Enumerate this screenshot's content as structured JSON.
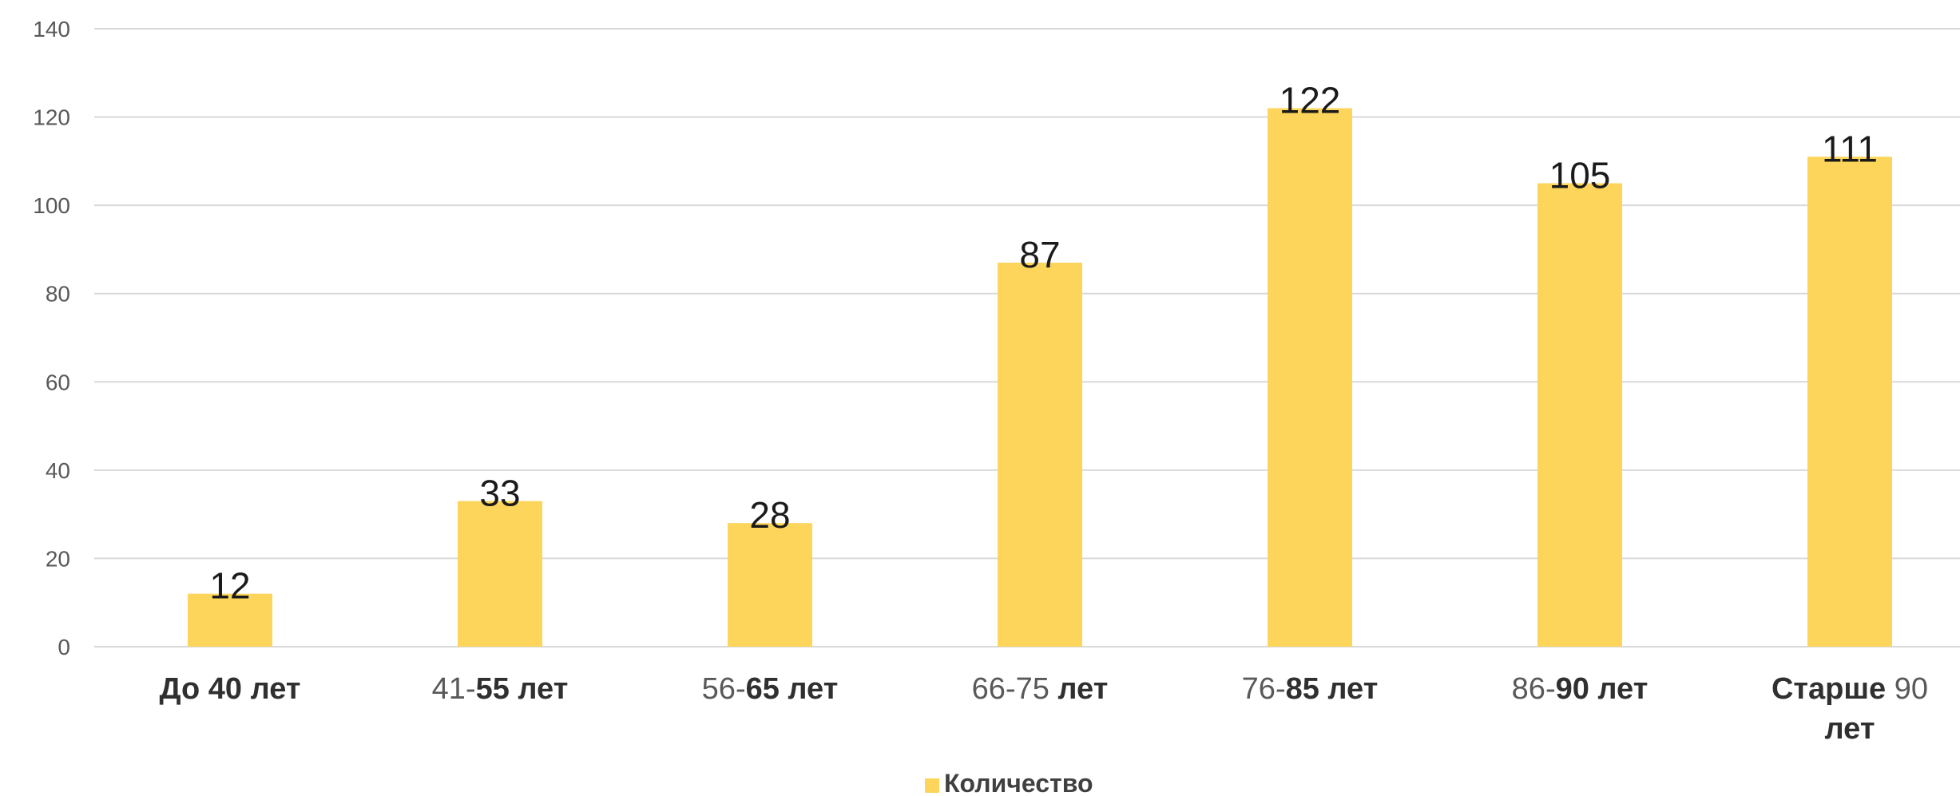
{
  "chart_data": {
    "type": "bar",
    "categories": [
      [
        {
          "t": "До 40 лет",
          "b": true
        }
      ],
      [
        {
          "t": "41-",
          "b": false
        },
        {
          "t": "55 лет",
          "b": true
        }
      ],
      [
        {
          "t": "56-",
          "b": false
        },
        {
          "t": "65 лет",
          "b": true
        }
      ],
      [
        {
          "t": "66-75 ",
          "b": false
        },
        {
          "t": "лет",
          "b": true
        }
      ],
      [
        {
          "t": "76-",
          "b": false
        },
        {
          "t": "85 лет",
          "b": true
        }
      ],
      [
        {
          "t": "86-",
          "b": false
        },
        {
          "t": "90 лет",
          "b": true
        }
      ],
      [
        {
          "t": "Старше ",
          "b": true
        },
        {
          "t": "90",
          "b": false
        },
        {
          "t": "\n",
          "b": false
        },
        {
          "t": "лет",
          "b": true
        }
      ]
    ],
    "category_labels": [
      "До 40 лет",
      "41-55 лет",
      "56-65 лет",
      "66-75 лет",
      "76-85 лет",
      "86-90 лет",
      "Старше 90 лет"
    ],
    "series": [
      {
        "name": "Количество",
        "values": [
          12,
          33,
          28,
          87,
          122,
          105,
          111
        ],
        "color": "#FDD55A"
      }
    ],
    "ylim": [
      0,
      140
    ],
    "yticks": [
      0,
      20,
      40,
      60,
      80,
      100,
      120,
      140
    ],
    "grid": true,
    "legend": "bottom-center",
    "data_labels": true
  }
}
